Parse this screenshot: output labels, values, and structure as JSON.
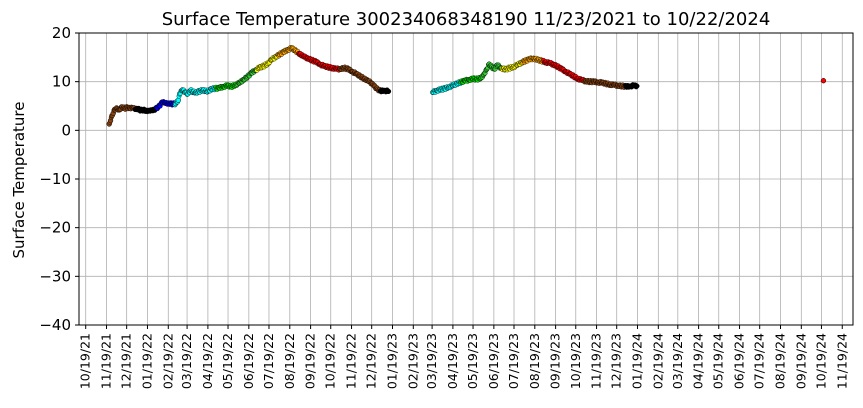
{
  "chart_data": {
    "type": "scatter",
    "title": "Surface Temperature 300234068348190  11/23/2021 to 10/22/2024",
    "ylabel": "Surface Temperature",
    "xlabel": "",
    "ylim": [
      -40,
      20
    ],
    "yticks": [
      "20",
      "10",
      "0",
      "−10",
      "−20",
      "−30",
      "−40"
    ],
    "xlim": [
      "2021-10-09",
      "2024-12-05"
    ],
    "xticks": [
      "10/19/21",
      "11/19/21",
      "12/19/21",
      "01/19/22",
      "02/19/22",
      "03/19/22",
      "04/19/22",
      "05/19/22",
      "06/19/22",
      "07/19/22",
      "08/19/22",
      "09/19/22",
      "10/19/22",
      "11/19/22",
      "12/19/22",
      "01/19/23",
      "02/19/23",
      "03/19/23",
      "04/19/23",
      "05/19/23",
      "06/19/23",
      "07/19/23",
      "08/19/23",
      "09/19/23",
      "10/19/23",
      "11/19/23",
      "12/19/23",
      "01/19/24",
      "02/19/24",
      "03/19/24",
      "04/19/24",
      "05/19/24",
      "06/19/24",
      "07/19/24",
      "08/19/24",
      "09/19/24",
      "10/19/24",
      "11/19/24"
    ],
    "grid": true,
    "color_by": "month",
    "month_colors": [
      "#000000",
      "#0000ff",
      "#00ffff",
      "#00ffff",
      "#00e000",
      "#32cd32",
      "#ffff00",
      "#ffa500",
      "#ff0000",
      "#ff0000",
      "#8b4513",
      "#8b4513"
    ],
    "points": [
      [
        "2021-11-23",
        1.3
      ],
      [
        "2021-11-25",
        2.0
      ],
      [
        "2021-11-27",
        3.0
      ],
      [
        "2021-11-29",
        3.5
      ],
      [
        "2021-12-01",
        4.3
      ],
      [
        "2021-12-04",
        4.6
      ],
      [
        "2021-12-08",
        4.2
      ],
      [
        "2021-12-12",
        4.8
      ],
      [
        "2021-12-16",
        4.5
      ],
      [
        "2021-12-20",
        4.7
      ],
      [
        "2021-12-24",
        4.5
      ],
      [
        "2021-12-28",
        4.6
      ],
      [
        "2022-01-01",
        4.3
      ],
      [
        "2022-01-05",
        4.4
      ],
      [
        "2022-01-09",
        4.1
      ],
      [
        "2022-01-13",
        4.2
      ],
      [
        "2022-01-17",
        4.0
      ],
      [
        "2022-01-21",
        4.1
      ],
      [
        "2022-01-25",
        4.2
      ],
      [
        "2022-01-29",
        4.2
      ],
      [
        "2022-02-02",
        4.6
      ],
      [
        "2022-02-06",
        5.0
      ],
      [
        "2022-02-10",
        5.8
      ],
      [
        "2022-02-14",
        5.6
      ],
      [
        "2022-02-18",
        5.4
      ],
      [
        "2022-02-22",
        5.5
      ],
      [
        "2022-02-26",
        5.4
      ],
      [
        "2022-03-02",
        5.5
      ],
      [
        "2022-03-06",
        6.2
      ],
      [
        "2022-03-08",
        7.5
      ],
      [
        "2022-03-12",
        8.3
      ],
      [
        "2022-03-16",
        7.8
      ],
      [
        "2022-03-20",
        7.5
      ],
      [
        "2022-03-24",
        8.2
      ],
      [
        "2022-03-28",
        7.9
      ],
      [
        "2022-04-01",
        7.8
      ],
      [
        "2022-04-06",
        8.0
      ],
      [
        "2022-04-12",
        8.3
      ],
      [
        "2022-04-18",
        7.9
      ],
      [
        "2022-04-24",
        8.5
      ],
      [
        "2022-04-30",
        8.6
      ],
      [
        "2022-05-06",
        8.7
      ],
      [
        "2022-05-12",
        9.0
      ],
      [
        "2022-05-18",
        9.2
      ],
      [
        "2022-05-24",
        9.0
      ],
      [
        "2022-05-30",
        9.3
      ],
      [
        "2022-06-05",
        9.7
      ],
      [
        "2022-06-11",
        10.4
      ],
      [
        "2022-06-17",
        11.0
      ],
      [
        "2022-06-23",
        11.8
      ],
      [
        "2022-06-29",
        12.4
      ],
      [
        "2022-07-05",
        12.9
      ],
      [
        "2022-07-11",
        13.2
      ],
      [
        "2022-07-17",
        13.7
      ],
      [
        "2022-07-23",
        14.5
      ],
      [
        "2022-07-29",
        15.1
      ],
      [
        "2022-08-04",
        15.6
      ],
      [
        "2022-08-10",
        16.1
      ],
      [
        "2022-08-16",
        16.6
      ],
      [
        "2022-08-22",
        16.9
      ],
      [
        "2022-08-28",
        16.3
      ],
      [
        "2022-09-03",
        15.7
      ],
      [
        "2022-09-09",
        15.1
      ],
      [
        "2022-09-15",
        14.8
      ],
      [
        "2022-09-21",
        14.4
      ],
      [
        "2022-09-27",
        14.1
      ],
      [
        "2022-10-03",
        13.6
      ],
      [
        "2022-10-09",
        13.2
      ],
      [
        "2022-10-15",
        13.0
      ],
      [
        "2022-10-21",
        12.8
      ],
      [
        "2022-10-27",
        12.6
      ],
      [
        "2022-11-02",
        12.6
      ],
      [
        "2022-11-08",
        12.8
      ],
      [
        "2022-11-14",
        12.6
      ],
      [
        "2022-11-20",
        12.1
      ],
      [
        "2022-11-26",
        11.6
      ],
      [
        "2022-12-02",
        11.1
      ],
      [
        "2022-12-08",
        10.6
      ],
      [
        "2022-12-14",
        10.1
      ],
      [
        "2022-12-20",
        9.6
      ],
      [
        "2022-12-26",
        8.6
      ],
      [
        "2023-01-01",
        8.1
      ],
      [
        "2023-01-07",
        8.2
      ],
      [
        "2023-01-13",
        8.0
      ],
      [
        "2023-03-20",
        7.8
      ],
      [
        "2023-03-26",
        8.2
      ],
      [
        "2023-04-01",
        8.4
      ],
      [
        "2023-04-07",
        8.6
      ],
      [
        "2023-04-13",
        8.9
      ],
      [
        "2023-04-19",
        9.2
      ],
      [
        "2023-04-25",
        9.6
      ],
      [
        "2023-05-01",
        9.9
      ],
      [
        "2023-05-07",
        10.2
      ],
      [
        "2023-05-13",
        10.4
      ],
      [
        "2023-05-19",
        10.6
      ],
      [
        "2023-05-25",
        10.5
      ],
      [
        "2023-05-31",
        10.8
      ],
      [
        "2023-06-04",
        11.5
      ],
      [
        "2023-06-08",
        12.5
      ],
      [
        "2023-06-12",
        13.6
      ],
      [
        "2023-06-16",
        13.0
      ],
      [
        "2023-06-20",
        12.6
      ],
      [
        "2023-06-24",
        13.4
      ],
      [
        "2023-06-30",
        12.8
      ],
      [
        "2023-07-06",
        12.5
      ],
      [
        "2023-07-12",
        12.8
      ],
      [
        "2023-07-18",
        13.0
      ],
      [
        "2023-07-24",
        13.4
      ],
      [
        "2023-07-30",
        13.9
      ],
      [
        "2023-08-05",
        14.3
      ],
      [
        "2023-08-11",
        14.6
      ],
      [
        "2023-08-17",
        14.8
      ],
      [
        "2023-08-23",
        14.5
      ],
      [
        "2023-08-29",
        14.3
      ],
      [
        "2023-09-04",
        14.0
      ],
      [
        "2023-09-10",
        13.8
      ],
      [
        "2023-09-16",
        13.5
      ],
      [
        "2023-09-22",
        13.1
      ],
      [
        "2023-09-28",
        12.6
      ],
      [
        "2023-10-04",
        12.1
      ],
      [
        "2023-10-10",
        11.6
      ],
      [
        "2023-10-16",
        11.1
      ],
      [
        "2023-10-22",
        10.6
      ],
      [
        "2023-10-28",
        10.3
      ],
      [
        "2023-11-03",
        10.1
      ],
      [
        "2023-11-09",
        10.0
      ],
      [
        "2023-11-15",
        10.0
      ],
      [
        "2023-11-21",
        9.9
      ],
      [
        "2023-11-27",
        9.8
      ],
      [
        "2023-12-03",
        9.6
      ],
      [
        "2023-12-09",
        9.4
      ],
      [
        "2023-12-15",
        9.3
      ],
      [
        "2023-12-21",
        9.2
      ],
      [
        "2023-12-27",
        9.1
      ],
      [
        "2024-01-02",
        9.0
      ],
      [
        "2024-01-08",
        9.1
      ],
      [
        "2024-01-14",
        9.2
      ],
      [
        "2024-01-18",
        9.1
      ],
      [
        "2024-10-22",
        10.2
      ]
    ]
  }
}
